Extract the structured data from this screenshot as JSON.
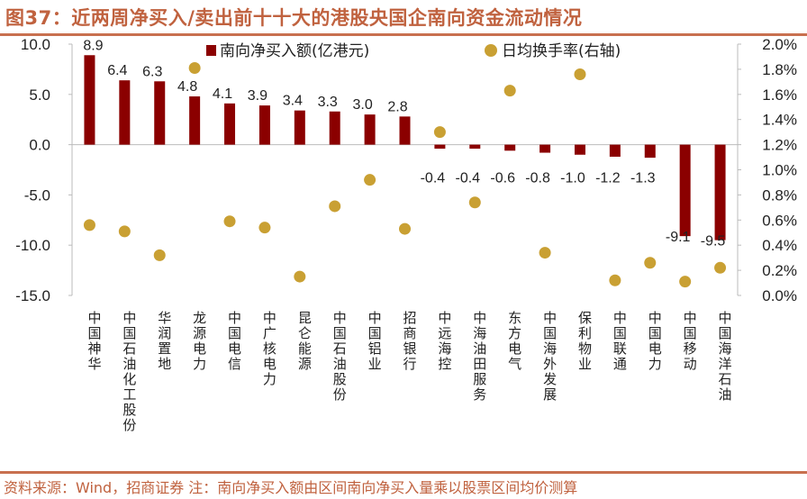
{
  "title": "图37：近两周净买入/卖出前十十大的港股央国企南向资金流动情况",
  "footer": "资料来源：Wind，招商证券    注：南向净买入额由区间南向净买入量乘以股票区间均价测算",
  "chart_data": {
    "type": "bar+scatter",
    "categories": [
      "中国神华",
      "中国石油化工股份",
      "华润置地",
      "龙源电力",
      "中国电信",
      "中广核电力",
      "昆仑能源",
      "中国石油股份",
      "中国铝业",
      "招商银行",
      "中远海控",
      "中海油田服务",
      "东方电气",
      "中国海外发展",
      "保利物业",
      "中国联通",
      "中国电力",
      "中国移动",
      "中国海洋石油"
    ],
    "series": [
      {
        "name": "南向净买入额(亿港元)",
        "type": "bar",
        "axis": "left",
        "color": "#8b0000",
        "values": [
          8.9,
          6.4,
          6.3,
          4.8,
          4.1,
          3.9,
          3.4,
          3.3,
          3.0,
          2.8,
          -0.4,
          -0.4,
          -0.6,
          -0.8,
          -1.0,
          -1.2,
          -1.3,
          -9.1,
          -9.5
        ],
        "labels": [
          "8.9",
          "6.4",
          "6.3",
          "4.8",
          "4.1",
          "3.9",
          "3.4",
          "3.3",
          "3.0",
          "2.8",
          "-0.4",
          "-0.4",
          "-0.6",
          "-0.8",
          "-1.0",
          "-1.2",
          "-1.3",
          "-9.1",
          "-9.5"
        ]
      },
      {
        "name": "日均换手率(右轴)",
        "type": "scatter",
        "axis": "right",
        "color": "#c9a033",
        "values": [
          0.56,
          0.51,
          0.32,
          1.81,
          0.59,
          0.54,
          0.15,
          0.71,
          0.92,
          0.53,
          1.3,
          0.74,
          1.63,
          0.34,
          1.76,
          0.12,
          0.26,
          0.11,
          0.22
        ]
      }
    ],
    "ylim_left": [
      -15,
      10
    ],
    "yticks_left": [
      "10.0",
      "5.0",
      "0.0",
      "-5.0",
      "-10.0",
      "-15.0"
    ],
    "ylim_right": [
      0,
      2.0
    ],
    "yticks_right": [
      "2.0%",
      "1.8%",
      "1.6%",
      "1.4%",
      "1.2%",
      "1.0%",
      "0.8%",
      "0.6%",
      "0.4%",
      "0.2%",
      "0.0%"
    ],
    "legend_position": "top",
    "grid": false
  }
}
